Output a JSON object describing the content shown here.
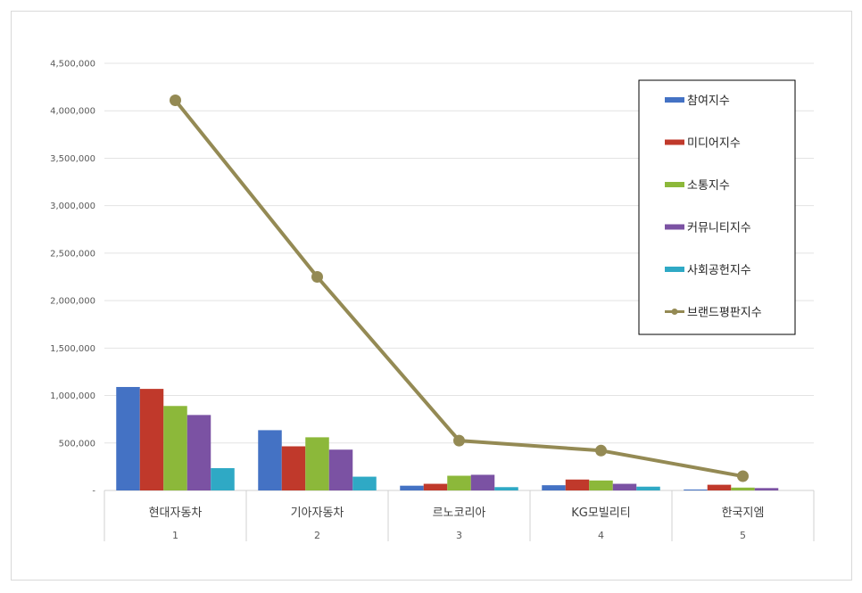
{
  "chart_data": {
    "type": "bar",
    "categories": [
      "현대자동차",
      "기아자동차",
      "르노코리아",
      "KG모빌리티",
      "한국지엠"
    ],
    "ranks": [
      "1",
      "2",
      "3",
      "4",
      "5"
    ],
    "series": [
      {
        "name": "참여지수",
        "type": "bar",
        "color": "#4472c4",
        "values": [
          1090000,
          635000,
          50000,
          55000,
          10000
        ]
      },
      {
        "name": "미디어지수",
        "type": "bar",
        "color": "#c0392b",
        "values": [
          1070000,
          465000,
          70000,
          115000,
          60000
        ]
      },
      {
        "name": "소통지수",
        "type": "bar",
        "color": "#8cb83a",
        "values": [
          890000,
          560000,
          155000,
          105000,
          30000
        ]
      },
      {
        "name": "커뮤니티지수",
        "type": "bar",
        "color": "#7b52a3",
        "values": [
          795000,
          430000,
          165000,
          70000,
          25000
        ]
      },
      {
        "name": "사회공헌지수",
        "type": "bar",
        "color": "#2fa9c5",
        "values": [
          235000,
          145000,
          35000,
          40000,
          0
        ]
      },
      {
        "name": "브랜드평판지수",
        "type": "line",
        "color": "#948a54",
        "values": [
          4110000,
          2250000,
          525000,
          420000,
          150000
        ]
      }
    ],
    "y_ticks": [
      "-",
      "500,000",
      "1,000,000",
      "1,500,000",
      "2,000,000",
      "2,500,000",
      "3,000,000",
      "3,500,000",
      "4,000,000",
      "4,500,000"
    ],
    "ylim": [
      0,
      4500000
    ],
    "grid": true,
    "legend_position": "right"
  }
}
